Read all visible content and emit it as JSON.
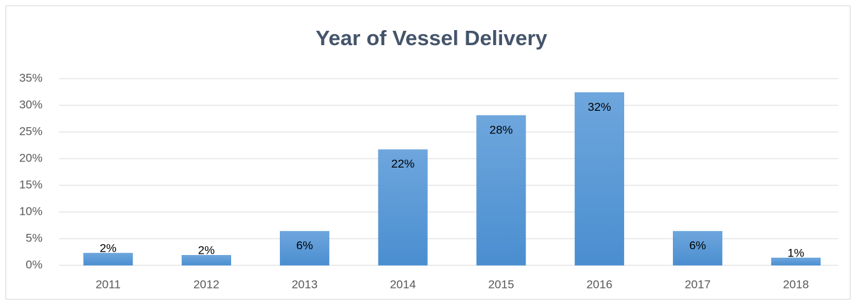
{
  "chart_data": {
    "type": "bar",
    "title": "Year of Vessel Delivery",
    "categories": [
      "2011",
      "2012",
      "2013",
      "2014",
      "2015",
      "2016",
      "2017",
      "2018"
    ],
    "values": [
      2.3,
      1.9,
      6.4,
      21.7,
      28.1,
      32.4,
      6.4,
      1.4
    ],
    "value_labels": [
      "2%",
      "2%",
      "6%",
      "22%",
      "28%",
      "32%",
      "6%",
      "1%"
    ],
    "color": "#5b9bd5",
    "ylim": [
      0,
      35
    ],
    "yticks": [
      {
        "value": 0,
        "label": "0%"
      },
      {
        "value": 5,
        "label": "5%"
      },
      {
        "value": 10,
        "label": "10%"
      },
      {
        "value": 15,
        "label": "15%"
      },
      {
        "value": 20,
        "label": "20%"
      },
      {
        "value": 25,
        "label": "25%"
      },
      {
        "value": 30,
        "label": "30%"
      },
      {
        "value": 35,
        "label": "35%"
      }
    ],
    "grid": true
  }
}
